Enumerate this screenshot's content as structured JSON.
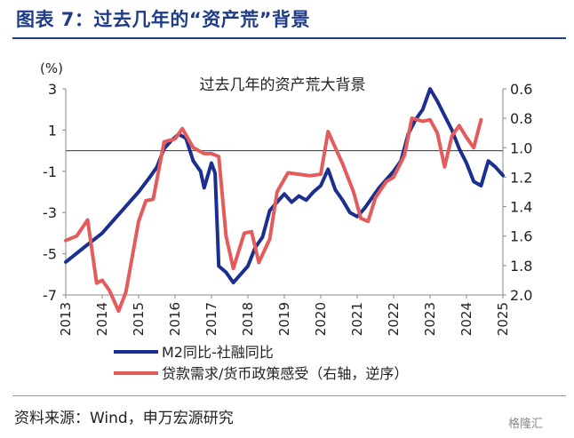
{
  "header": {
    "figure_title": "图表 7：过去几年的“资产荒”背景"
  },
  "footer": {
    "source": "资料来源：Wind，申万宏源研究",
    "watermark": "格隆汇"
  },
  "colors": {
    "accent": "#1f3c88",
    "series_blue": "#1a2f8f",
    "series_red": "#e45b5b"
  },
  "chart_data": {
    "type": "line",
    "title": "过去几年的资产荒大背景",
    "left_unit": "(%)",
    "ylim_left": [
      -7,
      3
    ],
    "yticks_left": [
      3,
      1,
      -1,
      -3,
      -5,
      -7
    ],
    "ylim_right": [
      0.6,
      2.0
    ],
    "yticks_right": [
      "0.6",
      "0.8",
      "1.0",
      "1.2",
      "1.4",
      "1.6",
      "1.8",
      "2.0"
    ],
    "right_axis_inverted": true,
    "xlim": [
      2013.0,
      2025.0
    ],
    "xticks": [
      "2013",
      "2014",
      "2015",
      "2016",
      "2017",
      "2018",
      "2019",
      "2020",
      "2021",
      "2022",
      "2023",
      "2024",
      "2025"
    ],
    "legend": [
      "M2同比-社融同比",
      "贷款需求/货币政策感受（右轴，逆序）"
    ],
    "series": [
      {
        "name": "M2同比-社融同比",
        "axis": "left",
        "points": [
          [
            2013.0,
            -5.4
          ],
          [
            2013.5,
            -4.7
          ],
          [
            2014.0,
            -4.0
          ],
          [
            2014.5,
            -3.0
          ],
          [
            2015.0,
            -2.0
          ],
          [
            2015.3,
            -1.3
          ],
          [
            2015.5,
            -0.8
          ],
          [
            2015.7,
            0.1
          ],
          [
            2015.9,
            0.5
          ],
          [
            2016.1,
            0.8
          ],
          [
            2016.3,
            0.6
          ],
          [
            2016.5,
            -0.5
          ],
          [
            2016.7,
            -1.0
          ],
          [
            2016.8,
            -1.8
          ],
          [
            2017.0,
            -0.6
          ],
          [
            2017.1,
            -1.1
          ],
          [
            2017.2,
            -5.6
          ],
          [
            2017.4,
            -5.9
          ],
          [
            2017.6,
            -6.4
          ],
          [
            2017.8,
            -6.0
          ],
          [
            2018.0,
            -5.6
          ],
          [
            2018.2,
            -4.7
          ],
          [
            2018.4,
            -4.2
          ],
          [
            2018.6,
            -2.9
          ],
          [
            2018.8,
            -2.5
          ],
          [
            2019.0,
            -2.1
          ],
          [
            2019.2,
            -2.5
          ],
          [
            2019.4,
            -2.2
          ],
          [
            2019.6,
            -2.4
          ],
          [
            2019.8,
            -2.0
          ],
          [
            2020.0,
            -1.7
          ],
          [
            2020.2,
            -0.9
          ],
          [
            2020.4,
            -1.9
          ],
          [
            2020.6,
            -2.4
          ],
          [
            2020.8,
            -3.0
          ],
          [
            2021.0,
            -3.2
          ],
          [
            2021.2,
            -2.8
          ],
          [
            2021.4,
            -2.3
          ],
          [
            2021.6,
            -1.8
          ],
          [
            2021.8,
            -1.4
          ],
          [
            2022.0,
            -1.0
          ],
          [
            2022.2,
            -0.5
          ],
          [
            2022.4,
            0.8
          ],
          [
            2022.6,
            1.5
          ],
          [
            2022.8,
            2.0
          ],
          [
            2023.0,
            3.0
          ],
          [
            2023.2,
            2.4
          ],
          [
            2023.4,
            1.7
          ],
          [
            2023.6,
            1.0
          ],
          [
            2023.8,
            0.1
          ],
          [
            2024.0,
            -0.6
          ],
          [
            2024.2,
            -1.5
          ],
          [
            2024.4,
            -1.7
          ],
          [
            2024.6,
            -0.5
          ],
          [
            2024.8,
            -0.8
          ],
          [
            2025.0,
            -1.2
          ]
        ]
      },
      {
        "name": "贷款需求/货币政策感受（右轴，逆序）",
        "axis": "right",
        "points": [
          [
            2013.0,
            1.63
          ],
          [
            2013.3,
            1.6
          ],
          [
            2013.6,
            1.49
          ],
          [
            2013.85,
            1.92
          ],
          [
            2014.0,
            1.9
          ],
          [
            2014.2,
            1.97
          ],
          [
            2014.45,
            2.11
          ],
          [
            2014.65,
            1.98
          ],
          [
            2015.0,
            1.5
          ],
          [
            2015.2,
            1.36
          ],
          [
            2015.4,
            1.35
          ],
          [
            2015.7,
            0.96
          ],
          [
            2016.0,
            0.94
          ],
          [
            2016.2,
            0.87
          ],
          [
            2016.5,
            1.0
          ],
          [
            2016.8,
            1.04
          ],
          [
            2017.0,
            1.04
          ],
          [
            2017.2,
            1.06
          ],
          [
            2017.4,
            1.6
          ],
          [
            2017.6,
            1.82
          ],
          [
            2017.9,
            1.58
          ],
          [
            2018.1,
            1.57
          ],
          [
            2018.3,
            1.78
          ],
          [
            2018.6,
            1.62
          ],
          [
            2018.8,
            1.3
          ],
          [
            2019.1,
            1.17
          ],
          [
            2019.4,
            1.18
          ],
          [
            2019.7,
            1.19
          ],
          [
            2020.0,
            1.18
          ],
          [
            2020.2,
            0.89
          ],
          [
            2020.6,
            1.11
          ],
          [
            2020.9,
            1.3
          ],
          [
            2021.1,
            1.48
          ],
          [
            2021.3,
            1.5
          ],
          [
            2021.5,
            1.34
          ],
          [
            2021.8,
            1.23
          ],
          [
            2022.0,
            1.2
          ],
          [
            2022.3,
            1.05
          ],
          [
            2022.5,
            0.8
          ],
          [
            2022.8,
            0.82
          ],
          [
            2023.0,
            0.81
          ],
          [
            2023.2,
            0.9
          ],
          [
            2023.4,
            1.13
          ],
          [
            2023.6,
            0.92
          ],
          [
            2023.8,
            0.85
          ],
          [
            2024.0,
            0.93
          ],
          [
            2024.2,
            1.0
          ],
          [
            2024.4,
            0.81
          ]
        ]
      }
    ]
  }
}
